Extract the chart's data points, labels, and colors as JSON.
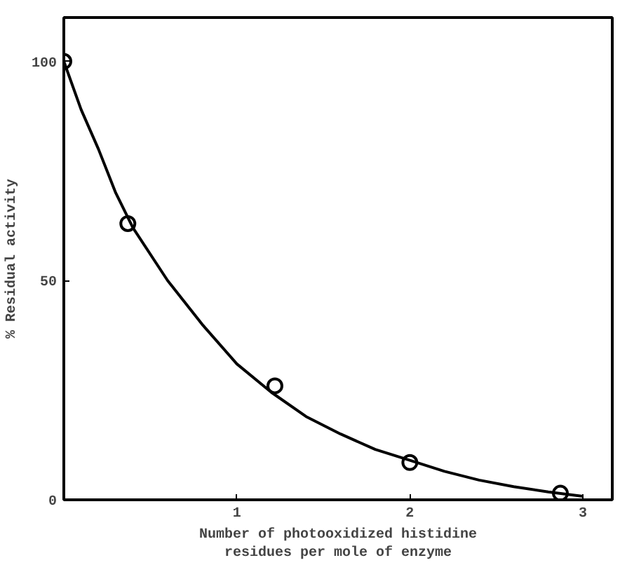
{
  "chart_data": {
    "type": "scatter",
    "xlabel": "Number of photooxidized histidine\nresidues per mole of enzyme",
    "ylabel": "% Residual activity",
    "xlim": [
      0,
      3.17
    ],
    "ylim": [
      0,
      110
    ],
    "xticks": [
      1,
      2,
      3
    ],
    "yticks": [
      0,
      50,
      100
    ],
    "grid": false,
    "series": [
      {
        "marker": "circle",
        "color": "#000000",
        "x": [
          0,
          0.37,
          1.22,
          2.0,
          2.87
        ],
        "values": [
          100,
          63,
          26,
          8.5,
          1.5
        ]
      },
      {
        "type": "line",
        "marker": "none",
        "line_style": "solid",
        "color": "#000000",
        "x": [
          0,
          0.1,
          0.2,
          0.3,
          0.4,
          0.6,
          0.8,
          1.0,
          1.2,
          1.4,
          1.6,
          1.8,
          2.0,
          2.2,
          2.4,
          2.6,
          2.8,
          3.0
        ],
        "values": [
          100,
          89,
          80,
          70,
          62,
          50,
          40,
          31,
          24.5,
          19,
          15,
          11.5,
          9,
          6.5,
          4.5,
          3,
          1.8,
          0.8
        ]
      }
    ]
  }
}
